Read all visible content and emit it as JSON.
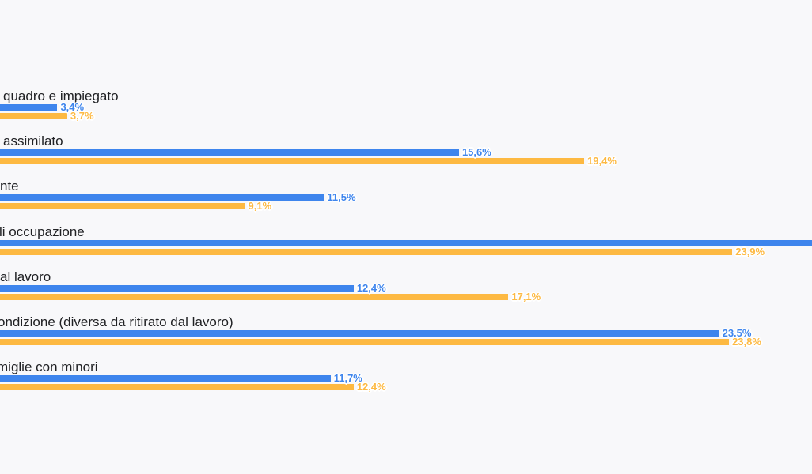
{
  "page": {
    "background_color": "#F8F8FA",
    "title": ""
  },
  "chart_data": {
    "type": "bar",
    "orientation": "horizontal",
    "title": "",
    "value_axis_visible": false,
    "grid": false,
    "legend_visible": false,
    "value_format": "percent",
    "categories": [
      "quadro e impiegato",
      "assimilato",
      "nte",
      "li occupazione",
      "al lavoro",
      "ondizione (diversa da ritirato dal lavoro)",
      "miglie con minori"
    ],
    "series": [
      {
        "name": "blue-series",
        "color": "#3E85ED",
        "values": [
          3.4,
          15.6,
          11.5,
          null,
          12.4,
          23.5,
          11.7
        ],
        "value_labels": [
          "3,4%",
          "15,6%",
          "11,5%",
          "",
          "12,4%",
          "23.5%",
          "11,7%"
        ]
      },
      {
        "name": "orange-series",
        "color": "#FDB942",
        "values": [
          3.7,
          19.4,
          9.1,
          23.9,
          17.1,
          23.8,
          12.4
        ],
        "value_labels": [
          "3,7%",
          "19,4%",
          "9,1%",
          "23,9%",
          "17,1%",
          "23,8%",
          "12,4%"
        ]
      }
    ]
  }
}
